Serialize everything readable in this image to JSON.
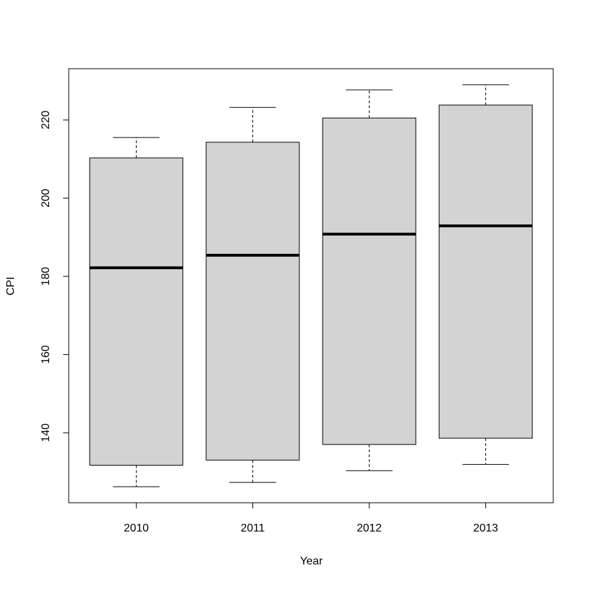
{
  "chart_data": {
    "type": "box",
    "x_label": "Year",
    "y_label": "CPI",
    "categories": [
      "2010",
      "2011",
      "2012",
      "2013"
    ],
    "min": [
      126.2,
      127.3,
      130.3,
      131.9
    ],
    "q1": [
      131.7,
      133.0,
      137.0,
      138.6
    ],
    "median": [
      182.2,
      185.4,
      190.8,
      192.9
    ],
    "q3": [
      210.3,
      214.3,
      220.5,
      223.8
    ],
    "max": [
      215.5,
      223.2,
      227.7,
      229.0
    ],
    "color": "#d3d3d3",
    "ylim": [
      122.1,
      233.1
    ],
    "yticks": [
      140,
      160,
      180,
      200,
      220
    ]
  }
}
